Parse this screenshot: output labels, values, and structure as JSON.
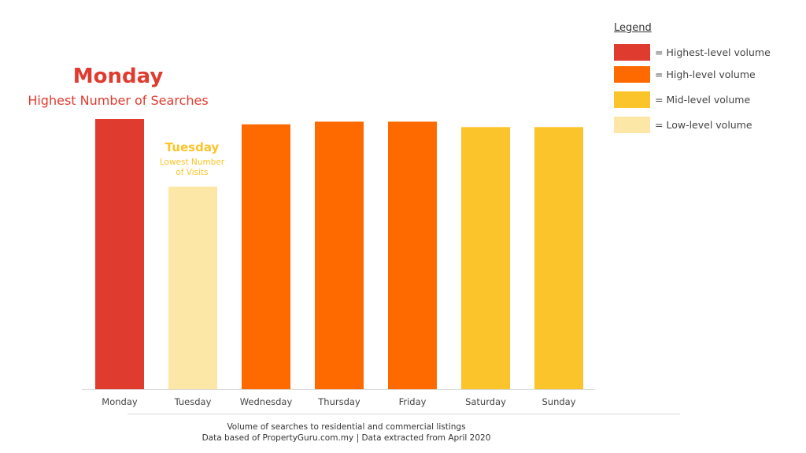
{
  "chart_data": {
    "type": "bar",
    "categories": [
      "Monday",
      "Tuesday",
      "Wednesday",
      "Thursday",
      "Friday",
      "Saturday",
      "Sunday"
    ],
    "values": [
      100,
      75,
      98,
      99,
      99,
      97,
      97
    ],
    "volume_levels": [
      "Highest-level",
      "Low-level",
      "High-level",
      "High-level",
      "High-level",
      "Mid-level",
      "Mid-level"
    ],
    "bar_colors": [
      "#e03b2f",
      "#fde7a7",
      "#ff6a00",
      "#ff6a00",
      "#ff6a00",
      "#fcc42b",
      "#fcc42b"
    ],
    "ylim": [
      0,
      100
    ],
    "grid": false,
    "legend_position": "top-right"
  },
  "annotations": {
    "highest_title": "Monday",
    "highest_subtitle": "Highest Number of Searches",
    "lowest_title": "Tuesday",
    "lowest_subtitle_line1": "Lowest Number",
    "lowest_subtitle_line2": "of Visits"
  },
  "legend": {
    "title": "Legend",
    "items": [
      {
        "label": "= Highest-level volume",
        "color": "#e03b2f"
      },
      {
        "label": "= High-level volume",
        "color": "#ff6a00"
      },
      {
        "label": "= Mid-level volume",
        "color": "#fcc42b"
      },
      {
        "label": "= Low-level volume",
        "color": "#fde7a7"
      }
    ]
  },
  "footer": {
    "line1": "Volume of searches to residential and commercial listings",
    "line2": "Data based of PropertyGuru.com.my | Data extracted from April 2020"
  }
}
